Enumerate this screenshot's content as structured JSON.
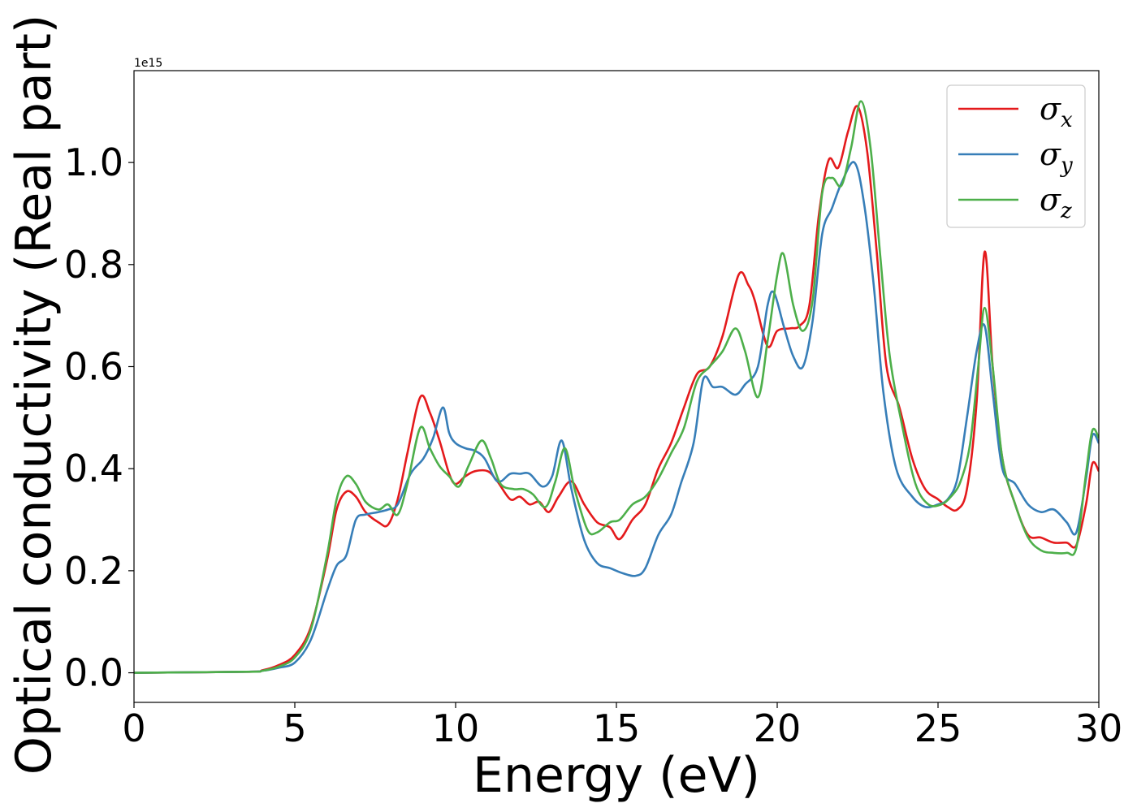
{
  "chart_data": {
    "type": "line",
    "title": "",
    "xlabel": "Energy (eV)",
    "ylabel": "Optical conductivity (Real part)",
    "y_offset_label": "1e15",
    "xlim": [
      0,
      30
    ],
    "ylim": [
      -0.058,
      1.18
    ],
    "xticks": [
      0,
      5,
      10,
      15,
      20,
      25,
      30
    ],
    "xtick_labels": [
      "0",
      "5",
      "10",
      "15",
      "20",
      "25",
      "30"
    ],
    "yticks": [
      0.0,
      0.2,
      0.4,
      0.6,
      0.8,
      1.0
    ],
    "ytick_labels": [
      "0.0",
      "0.2",
      "0.4",
      "0.6",
      "0.8",
      "1.0"
    ],
    "grid": false,
    "legend_position": "top-right",
    "series": [
      {
        "name": "σx",
        "symbol": "σ",
        "subscript": "x",
        "color": "#e41a1c",
        "points": [
          [
            0,
            0.0
          ],
          [
            3.5,
            0.002
          ],
          [
            4,
            0.005
          ],
          [
            4.5,
            0.015
          ],
          [
            5,
            0.035
          ],
          [
            5.5,
            0.09
          ],
          [
            6,
            0.22
          ],
          [
            6.3,
            0.32
          ],
          [
            6.6,
            0.355
          ],
          [
            6.9,
            0.345
          ],
          [
            7.2,
            0.315
          ],
          [
            7.6,
            0.295
          ],
          [
            7.9,
            0.29
          ],
          [
            8.2,
            0.34
          ],
          [
            8.5,
            0.43
          ],
          [
            8.9,
            0.54
          ],
          [
            9.2,
            0.51
          ],
          [
            9.5,
            0.455
          ],
          [
            9.8,
            0.39
          ],
          [
            10,
            0.37
          ],
          [
            10.3,
            0.385
          ],
          [
            10.6,
            0.395
          ],
          [
            11,
            0.395
          ],
          [
            11.3,
            0.375
          ],
          [
            11.7,
            0.34
          ],
          [
            12,
            0.345
          ],
          [
            12.3,
            0.33
          ],
          [
            12.6,
            0.335
          ],
          [
            12.9,
            0.315
          ],
          [
            13.2,
            0.345
          ],
          [
            13.6,
            0.375
          ],
          [
            14,
            0.33
          ],
          [
            14.4,
            0.295
          ],
          [
            14.8,
            0.285
          ],
          [
            15.1,
            0.262
          ],
          [
            15.5,
            0.3
          ],
          [
            15.9,
            0.33
          ],
          [
            16.3,
            0.4
          ],
          [
            16.7,
            0.45
          ],
          [
            17.1,
            0.52
          ],
          [
            17.5,
            0.585
          ],
          [
            17.9,
            0.6
          ],
          [
            18.3,
            0.66
          ],
          [
            18.8,
            0.78
          ],
          [
            19.1,
            0.76
          ],
          [
            19.3,
            0.73
          ],
          [
            19.7,
            0.64
          ],
          [
            20,
            0.67
          ],
          [
            20.4,
            0.675
          ],
          [
            20.7,
            0.68
          ],
          [
            21,
            0.72
          ],
          [
            21.3,
            0.9
          ],
          [
            21.6,
            1.005
          ],
          [
            21.9,
            0.99
          ],
          [
            22.2,
            1.06
          ],
          [
            22.5,
            1.11
          ],
          [
            22.8,
            1.02
          ],
          [
            23.1,
            0.82
          ],
          [
            23.4,
            0.6
          ],
          [
            23.8,
            0.52
          ],
          [
            24.2,
            0.42
          ],
          [
            24.6,
            0.36
          ],
          [
            25,
            0.34
          ],
          [
            25.3,
            0.325
          ],
          [
            25.6,
            0.32
          ],
          [
            25.9,
            0.36
          ],
          [
            26.2,
            0.53
          ],
          [
            26.45,
            0.825
          ],
          [
            26.7,
            0.6
          ],
          [
            27,
            0.42
          ],
          [
            27.4,
            0.33
          ],
          [
            27.8,
            0.27
          ],
          [
            28.2,
            0.265
          ],
          [
            28.6,
            0.255
          ],
          [
            29,
            0.255
          ],
          [
            29.3,
            0.25
          ],
          [
            29.6,
            0.33
          ],
          [
            29.8,
            0.41
          ],
          [
            30,
            0.395
          ]
        ]
      },
      {
        "name": "σy",
        "symbol": "σ",
        "subscript": "y",
        "color": "#377eb8",
        "points": [
          [
            0,
            0.0
          ],
          [
            3.5,
            0.002
          ],
          [
            4,
            0.004
          ],
          [
            4.5,
            0.01
          ],
          [
            5,
            0.02
          ],
          [
            5.5,
            0.065
          ],
          [
            6,
            0.16
          ],
          [
            6.3,
            0.21
          ],
          [
            6.6,
            0.23
          ],
          [
            6.9,
            0.3
          ],
          [
            7.2,
            0.31
          ],
          [
            7.6,
            0.315
          ],
          [
            7.9,
            0.32
          ],
          [
            8.2,
            0.33
          ],
          [
            8.6,
            0.39
          ],
          [
            9,
            0.42
          ],
          [
            9.3,
            0.46
          ],
          [
            9.6,
            0.52
          ],
          [
            9.8,
            0.47
          ],
          [
            10,
            0.45
          ],
          [
            10.3,
            0.44
          ],
          [
            10.6,
            0.435
          ],
          [
            10.9,
            0.42
          ],
          [
            11.3,
            0.375
          ],
          [
            11.7,
            0.39
          ],
          [
            12,
            0.39
          ],
          [
            12.3,
            0.39
          ],
          [
            12.7,
            0.365
          ],
          [
            13,
            0.385
          ],
          [
            13.3,
            0.455
          ],
          [
            13.6,
            0.36
          ],
          [
            14,
            0.26
          ],
          [
            14.4,
            0.215
          ],
          [
            14.8,
            0.205
          ],
          [
            15.2,
            0.195
          ],
          [
            15.6,
            0.19
          ],
          [
            15.9,
            0.205
          ],
          [
            16.3,
            0.27
          ],
          [
            16.7,
            0.31
          ],
          [
            17,
            0.37
          ],
          [
            17.4,
            0.45
          ],
          [
            17.7,
            0.575
          ],
          [
            18,
            0.56
          ],
          [
            18.3,
            0.56
          ],
          [
            18.7,
            0.545
          ],
          [
            19,
            0.565
          ],
          [
            19.4,
            0.6
          ],
          [
            19.7,
            0.72
          ],
          [
            19.9,
            0.745
          ],
          [
            20.2,
            0.68
          ],
          [
            20.5,
            0.62
          ],
          [
            20.8,
            0.6
          ],
          [
            21.1,
            0.69
          ],
          [
            21.4,
            0.86
          ],
          [
            21.7,
            0.91
          ],
          [
            22,
            0.96
          ],
          [
            22.4,
            1.0
          ],
          [
            22.7,
            0.92
          ],
          [
            23,
            0.76
          ],
          [
            23.3,
            0.55
          ],
          [
            23.7,
            0.4
          ],
          [
            24.2,
            0.345
          ],
          [
            24.6,
            0.325
          ],
          [
            25,
            0.33
          ],
          [
            25.3,
            0.34
          ],
          [
            25.6,
            0.38
          ],
          [
            25.9,
            0.5
          ],
          [
            26.2,
            0.63
          ],
          [
            26.45,
            0.68
          ],
          [
            26.7,
            0.55
          ],
          [
            27,
            0.4
          ],
          [
            27.4,
            0.37
          ],
          [
            27.8,
            0.33
          ],
          [
            28.2,
            0.315
          ],
          [
            28.6,
            0.32
          ],
          [
            29,
            0.295
          ],
          [
            29.3,
            0.275
          ],
          [
            29.6,
            0.38
          ],
          [
            29.8,
            0.465
          ],
          [
            30,
            0.45
          ]
        ]
      },
      {
        "name": "σz",
        "symbol": "σ",
        "subscript": "z",
        "color": "#4daf4a",
        "points": [
          [
            0,
            0.0
          ],
          [
            3.5,
            0.002
          ],
          [
            4,
            0.004
          ],
          [
            4.5,
            0.012
          ],
          [
            5,
            0.03
          ],
          [
            5.5,
            0.085
          ],
          [
            6,
            0.23
          ],
          [
            6.3,
            0.34
          ],
          [
            6.6,
            0.385
          ],
          [
            6.9,
            0.37
          ],
          [
            7.2,
            0.335
          ],
          [
            7.6,
            0.32
          ],
          [
            7.9,
            0.33
          ],
          [
            8.2,
            0.31
          ],
          [
            8.5,
            0.37
          ],
          [
            8.9,
            0.48
          ],
          [
            9.2,
            0.44
          ],
          [
            9.5,
            0.405
          ],
          [
            9.8,
            0.385
          ],
          [
            10.1,
            0.365
          ],
          [
            10.4,
            0.405
          ],
          [
            10.8,
            0.455
          ],
          [
            11.1,
            0.42
          ],
          [
            11.4,
            0.37
          ],
          [
            11.8,
            0.36
          ],
          [
            12.1,
            0.36
          ],
          [
            12.4,
            0.35
          ],
          [
            12.8,
            0.325
          ],
          [
            13.1,
            0.375
          ],
          [
            13.4,
            0.44
          ],
          [
            13.7,
            0.36
          ],
          [
            14.1,
            0.28
          ],
          [
            14.4,
            0.275
          ],
          [
            14.8,
            0.295
          ],
          [
            15.1,
            0.3
          ],
          [
            15.5,
            0.33
          ],
          [
            15.9,
            0.345
          ],
          [
            16.3,
            0.38
          ],
          [
            16.7,
            0.43
          ],
          [
            17.1,
            0.48
          ],
          [
            17.5,
            0.57
          ],
          [
            17.9,
            0.6
          ],
          [
            18.3,
            0.63
          ],
          [
            18.7,
            0.675
          ],
          [
            19,
            0.63
          ],
          [
            19.4,
            0.54
          ],
          [
            19.7,
            0.65
          ],
          [
            20,
            0.78
          ],
          [
            20.2,
            0.82
          ],
          [
            20.5,
            0.72
          ],
          [
            20.8,
            0.67
          ],
          [
            21.1,
            0.73
          ],
          [
            21.4,
            0.94
          ],
          [
            21.7,
            0.97
          ],
          [
            22,
            0.955
          ],
          [
            22.3,
            1.03
          ],
          [
            22.6,
            1.12
          ],
          [
            22.9,
            1.03
          ],
          [
            23.2,
            0.82
          ],
          [
            23.5,
            0.62
          ],
          [
            23.9,
            0.48
          ],
          [
            24.3,
            0.37
          ],
          [
            24.7,
            0.33
          ],
          [
            25.1,
            0.33
          ],
          [
            25.4,
            0.345
          ],
          [
            25.7,
            0.375
          ],
          [
            26,
            0.45
          ],
          [
            26.25,
            0.6
          ],
          [
            26.45,
            0.715
          ],
          [
            26.7,
            0.6
          ],
          [
            27,
            0.42
          ],
          [
            27.4,
            0.33
          ],
          [
            27.8,
            0.265
          ],
          [
            28.2,
            0.24
          ],
          [
            28.6,
            0.235
          ],
          [
            29,
            0.235
          ],
          [
            29.3,
            0.245
          ],
          [
            29.6,
            0.39
          ],
          [
            29.8,
            0.475
          ],
          [
            30,
            0.46
          ]
        ]
      }
    ]
  }
}
